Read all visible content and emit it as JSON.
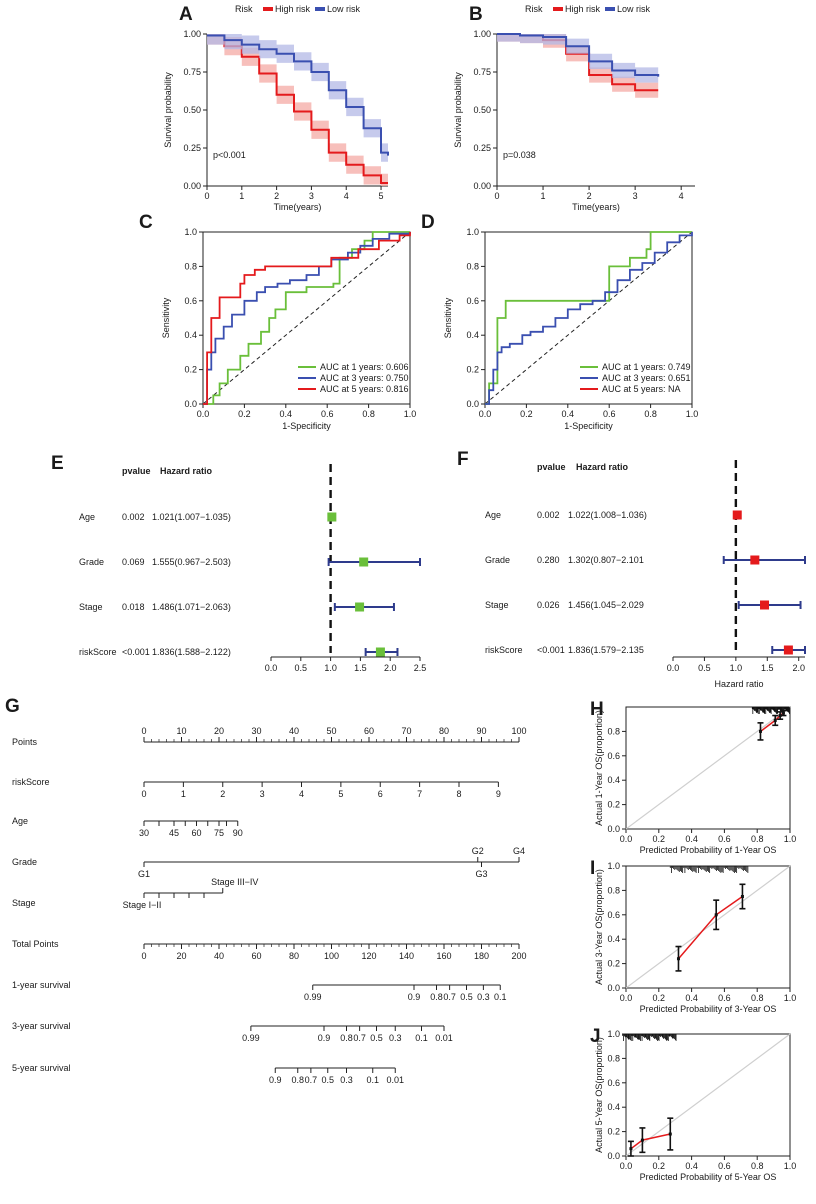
{
  "colors": {
    "high_risk": "#e41a1c",
    "low_risk": "#3a4fb0",
    "green": "#6abf3a",
    "red": "#e41a1c",
    "blue": "#3a4fb0",
    "band_high": "#f4a9a4",
    "band_low": "#b3b8e6"
  },
  "chart_data": [
    {
      "id": "A",
      "type": "line",
      "label": "A",
      "legend_title": "Risk",
      "legend": [
        "High risk",
        "Low risk"
      ],
      "xlabel": "Time(years)",
      "ylabel": "Survival probability",
      "xlim": [
        0,
        5.2
      ],
      "ylim": [
        0,
        1
      ],
      "xticks": [
        "0",
        "1",
        "2",
        "3",
        "4",
        "5"
      ],
      "yticks": [
        "0.00",
        "0.25",
        "0.50",
        "0.75",
        "1.00"
      ],
      "pvalue": "p<0.001",
      "series": [
        {
          "name": "High risk",
          "x": [
            0,
            0.5,
            1,
            1.5,
            2,
            2.5,
            3,
            3.5,
            4,
            4.5,
            5,
            5.2
          ],
          "y": [
            0.99,
            0.92,
            0.85,
            0.74,
            0.6,
            0.49,
            0.37,
            0.22,
            0.14,
            0.07,
            0.02,
            0.02
          ],
          "band": 0.06
        },
        {
          "name": "Low risk",
          "x": [
            0,
            0.5,
            1,
            1.5,
            2,
            2.5,
            3,
            3.5,
            4,
            4.5,
            5,
            5.2
          ],
          "y": [
            0.99,
            0.96,
            0.93,
            0.9,
            0.87,
            0.82,
            0.75,
            0.63,
            0.52,
            0.38,
            0.22,
            0.2
          ],
          "band": 0.06
        }
      ]
    },
    {
      "id": "B",
      "type": "line",
      "label": "B",
      "legend_title": "Risk",
      "legend": [
        "High risk",
        "Low risk"
      ],
      "xlabel": "Time(years)",
      "ylabel": "Survival probability",
      "xlim": [
        0,
        4.3
      ],
      "ylim": [
        0,
        1
      ],
      "xticks": [
        "0",
        "1",
        "2",
        "3",
        "4"
      ],
      "yticks": [
        "0.00",
        "0.25",
        "0.50",
        "0.75",
        "1.00"
      ],
      "pvalue": "p=0.038",
      "series": [
        {
          "name": "High risk",
          "x": [
            0,
            0.5,
            1,
            1.5,
            2,
            2.5,
            3,
            3.5
          ],
          "y": [
            1,
            0.99,
            0.96,
            0.87,
            0.73,
            0.67,
            0.63,
            0.63
          ],
          "band": 0.05
        },
        {
          "name": "Low risk",
          "x": [
            0,
            0.5,
            1,
            1.5,
            2,
            2.5,
            3,
            3.5
          ],
          "y": [
            1,
            0.99,
            0.98,
            0.92,
            0.82,
            0.76,
            0.73,
            0.72
          ],
          "band": 0.05
        }
      ]
    },
    {
      "id": "C",
      "type": "line",
      "label": "C",
      "xlabel": "1-Specificity",
      "ylabel": "Sensitivity",
      "xlim": [
        0,
        1
      ],
      "ylim": [
        0,
        1
      ],
      "xticks": [
        "0.0",
        "0.2",
        "0.4",
        "0.6",
        "0.8",
        "1.0"
      ],
      "yticks": [
        "0.0",
        "0.2",
        "0.4",
        "0.6",
        "0.8",
        "1.0"
      ],
      "legend": [
        "AUC at 1 years: 0.606",
        "AUC at 3 years: 0.750",
        "AUC at 5 years: 0.816"
      ],
      "series": [
        {
          "name": "AUC at 1 years: 0.606",
          "x": [
            0,
            0.05,
            0.08,
            0.12,
            0.18,
            0.22,
            0.28,
            0.32,
            0.35,
            0.4,
            0.5,
            0.6,
            0.63,
            0.66,
            0.72,
            0.78,
            0.82,
            0.9,
            1
          ],
          "y": [
            0,
            0.05,
            0.12,
            0.2,
            0.28,
            0.35,
            0.42,
            0.5,
            0.55,
            0.65,
            0.68,
            0.68,
            0.7,
            0.85,
            0.9,
            0.95,
            1,
            1,
            1
          ]
        },
        {
          "name": "AUC at 3 years: 0.750",
          "x": [
            0,
            0.02,
            0.04,
            0.06,
            0.1,
            0.14,
            0.2,
            0.26,
            0.3,
            0.36,
            0.42,
            0.5,
            0.56,
            0.62,
            0.7,
            0.76,
            0.82,
            0.9,
            1
          ],
          "y": [
            0,
            0.2,
            0.3,
            0.38,
            0.45,
            0.52,
            0.6,
            0.65,
            0.68,
            0.7,
            0.72,
            0.75,
            0.8,
            0.84,
            0.88,
            0.92,
            0.96,
            0.99,
            1
          ]
        },
        {
          "name": "AUC at 5 years: 0.816",
          "x": [
            0,
            0.02,
            0.04,
            0.08,
            0.08,
            0.14,
            0.18,
            0.2,
            0.25,
            0.3,
            0.42,
            0.5,
            0.62,
            0.75,
            0.85,
            0.95,
            1
          ],
          "y": [
            0,
            0.3,
            0.5,
            0.5,
            0.62,
            0.62,
            0.7,
            0.75,
            0.78,
            0.8,
            0.8,
            0.8,
            0.85,
            0.9,
            0.95,
            0.98,
            1
          ]
        }
      ]
    },
    {
      "id": "D",
      "type": "line",
      "label": "D",
      "xlabel": "1-Specificity",
      "ylabel": "Sensitivity",
      "xlim": [
        0,
        1
      ],
      "ylim": [
        0,
        1
      ],
      "xticks": [
        "0.0",
        "0.2",
        "0.4",
        "0.6",
        "0.8",
        "1.0"
      ],
      "yticks": [
        "0.0",
        "0.2",
        "0.4",
        "0.6",
        "0.8",
        "1.0"
      ],
      "legend": [
        "AUC at 1 years: 0.749",
        "AUC at 3 years: 0.651",
        "AUC at 5 years: NA"
      ],
      "series": [
        {
          "name": "AUC at 1 years: 0.749",
          "x": [
            0,
            0.02,
            0.02,
            0.06,
            0.06,
            0.1,
            0.1,
            0.3,
            0.4,
            0.55,
            0.6,
            0.6,
            0.7,
            0.7,
            0.78,
            0.8,
            0.8,
            1
          ],
          "y": [
            0,
            0,
            0.12,
            0.12,
            0.5,
            0.5,
            0.6,
            0.6,
            0.6,
            0.6,
            0.6,
            0.8,
            0.8,
            0.85,
            0.9,
            0.9,
            1,
            1
          ]
        },
        {
          "name": "AUC at 3 years: 0.651",
          "x": [
            0,
            0.02,
            0.04,
            0.06,
            0.08,
            0.12,
            0.18,
            0.22,
            0.28,
            0.34,
            0.4,
            0.46,
            0.52,
            0.58,
            0.64,
            0.7,
            0.76,
            0.82,
            0.88,
            0.94,
            1
          ],
          "y": [
            0,
            0.08,
            0.2,
            0.3,
            0.33,
            0.35,
            0.4,
            0.42,
            0.45,
            0.5,
            0.55,
            0.58,
            0.6,
            0.65,
            0.72,
            0.78,
            0.82,
            0.88,
            0.94,
            0.98,
            1
          ]
        }
      ]
    },
    {
      "id": "E",
      "type": "scatter",
      "label": "E",
      "pvalue_header": "pvalue",
      "hr_header": "Hazard ratio",
      "xlim": [
        0,
        2.5
      ],
      "xticks": [
        "0.0",
        "0.5",
        "1.0",
        "1.5",
        "2.0",
        "2.5"
      ],
      "rows": [
        {
          "name": "Age",
          "pvalue": "0.002",
          "hr_text": "1.021(1.007−1.035)",
          "hr": 1.021,
          "lo": 1.007,
          "hi": 1.035
        },
        {
          "name": "Grade",
          "pvalue": "0.069",
          "hr_text": "1.555(0.967−2.503)",
          "hr": 1.555,
          "lo": 0.967,
          "hi": 2.503
        },
        {
          "name": "Stage",
          "pvalue": "0.018",
          "hr_text": "1.486(1.071−2.063)",
          "hr": 1.486,
          "lo": 1.071,
          "hi": 2.063
        },
        {
          "name": "riskScore",
          "pvalue": "<0.001",
          "hr_text": "1.836(1.588−2.122)",
          "hr": 1.836,
          "lo": 1.588,
          "hi": 2.122
        }
      ]
    },
    {
      "id": "F",
      "type": "scatter",
      "label": "F",
      "pvalue_header": "pvalue",
      "hr_header": "Hazard ratio",
      "xlabel": "Hazard ratio",
      "xlim": [
        0,
        2.1
      ],
      "xticks": [
        "0.0",
        "0.5",
        "1.0",
        "1.5",
        "2.0"
      ],
      "rows": [
        {
          "name": "Age",
          "pvalue": "0.002",
          "hr_text": "1.022(1.008−1.036)",
          "hr": 1.022,
          "lo": 1.008,
          "hi": 1.036
        },
        {
          "name": "Grade",
          "pvalue": "0.280",
          "hr_text": "1.302(0.807−2.101",
          "hr": 1.302,
          "lo": 0.807,
          "hi": 2.101
        },
        {
          "name": "Stage",
          "pvalue": "0.026",
          "hr_text": "1.456(1.045−2.029",
          "hr": 1.456,
          "lo": 1.045,
          "hi": 2.029
        },
        {
          "name": "riskScore",
          "pvalue": "<0.001",
          "hr_text": "1.836(1.579−2.135",
          "hr": 1.836,
          "lo": 1.579,
          "hi": 2.135
        }
      ]
    },
    {
      "id": "G",
      "type": "table",
      "label": "G",
      "rows": [
        {
          "name": "Points",
          "ticks": [
            {
              "v": 0,
              "l": "0"
            },
            {
              "v": 10,
              "l": "10"
            },
            {
              "v": 20,
              "l": "20"
            },
            {
              "v": 30,
              "l": "30"
            },
            {
              "v": 40,
              "l": "40"
            },
            {
              "v": 50,
              "l": "50"
            },
            {
              "v": 60,
              "l": "60"
            },
            {
              "v": 70,
              "l": "70"
            },
            {
              "v": 80,
              "l": "80"
            },
            {
              "v": 90,
              "l": "90"
            },
            {
              "v": 100,
              "l": "100"
            }
          ],
          "minor": true,
          "label_pos": "above"
        },
        {
          "name": "riskScore",
          "ticks": [
            {
              "v": 0,
              "l": "0"
            },
            {
              "v": 10.5,
              "l": "1"
            },
            {
              "v": 21,
              "l": "2"
            },
            {
              "v": 31.5,
              "l": "3"
            },
            {
              "v": 42,
              "l": "4"
            },
            {
              "v": 52.5,
              "l": "5"
            },
            {
              "v": 63,
              "l": "6"
            },
            {
              "v": 73.5,
              "l": "7"
            },
            {
              "v": 84,
              "l": "8"
            },
            {
              "v": 94.5,
              "l": "9"
            }
          ],
          "label_pos": "below"
        },
        {
          "name": "Age",
          "ticks": [
            {
              "v": 0,
              "l": "30"
            },
            {
              "v": 4,
              "l": ""
            },
            {
              "v": 8,
              "l": "45"
            },
            {
              "v": 11,
              "l": ""
            },
            {
              "v": 14,
              "l": "60"
            },
            {
              "v": 17,
              "l": ""
            },
            {
              "v": 20,
              "l": "75"
            },
            {
              "v": 22,
              "l": ""
            },
            {
              "v": 25,
              "l": "90"
            }
          ],
          "range": [
            0,
            22
          ],
          "label_pos": "below"
        },
        {
          "name": "Grade",
          "ticks": [
            {
              "v": 0,
              "l": "G1"
            },
            {
              "v": 89,
              "l": "G2"
            },
            {
              "v": 90,
              "l": "G3"
            },
            {
              "v": 100,
              "l": "G4"
            }
          ],
          "alt": true
        },
        {
          "name": "Stage",
          "ticks": [
            {
              "v": 0,
              "l": "Stage I−II"
            },
            {
              "v": 4,
              "l": ""
            },
            {
              "v": 8,
              "l": ""
            },
            {
              "v": 12,
              "l": ""
            },
            {
              "v": 16,
              "l": ""
            },
            {
              "v": 21,
              "l": "Stage III−IV"
            }
          ],
          "stage": true
        },
        {
          "name": "Total Points",
          "ticks": [
            {
              "v": 0,
              "l": "0"
            },
            {
              "v": 10,
              "l": "20"
            },
            {
              "v": 20,
              "l": "40"
            },
            {
              "v": 30,
              "l": "60"
            },
            {
              "v": 40,
              "l": "80"
            },
            {
              "v": 50,
              "l": "100"
            },
            {
              "v": 60,
              "l": "120"
            },
            {
              "v": 70,
              "l": "140"
            },
            {
              "v": 80,
              "l": "160"
            },
            {
              "v": 90,
              "l": "180"
            },
            {
              "v": 100,
              "l": "200"
            }
          ],
          "minor": true,
          "label_pos": "below"
        },
        {
          "name": "1-year survival",
          "ticks": [
            {
              "v": 45,
              "l": "0.99"
            },
            {
              "v": 72,
              "l": "0.9"
            },
            {
              "v": 78,
              "l": "0.8"
            },
            {
              "v": 81.5,
              "l": "0.7"
            },
            {
              "v": 86,
              "l": "0.5"
            },
            {
              "v": 90.5,
              "l": "0.3"
            },
            {
              "v": 95,
              "l": "0.1"
            }
          ],
          "label_pos": "below"
        },
        {
          "name": "3-year survival",
          "ticks": [
            {
              "v": 28.5,
              "l": "0.99"
            },
            {
              "v": 48,
              "l": "0.9"
            },
            {
              "v": 54,
              "l": "0.8"
            },
            {
              "v": 57.5,
              "l": "0.7"
            },
            {
              "v": 62,
              "l": "0.5"
            },
            {
              "v": 67,
              "l": "0.3"
            },
            {
              "v": 74,
              "l": "0.1"
            },
            {
              "v": 80,
              "l": "0.01"
            }
          ],
          "label_pos": "below"
        },
        {
          "name": "5-year survival",
          "ticks": [
            {
              "v": 35,
              "l": "0.9"
            },
            {
              "v": 41,
              "l": "0.8"
            },
            {
              "v": 44.5,
              "l": "0.7"
            },
            {
              "v": 49,
              "l": "0.5"
            },
            {
              "v": 54,
              "l": "0.3"
            },
            {
              "v": 61,
              "l": "0.1"
            },
            {
              "v": 67,
              "l": "0.01"
            }
          ],
          "label_pos": "below"
        }
      ]
    },
    {
      "id": "H",
      "type": "line",
      "label": "H",
      "xlabel": "Predicted Probability of 1-Year OS",
      "ylabel": "Actual 1-Year OS(proportion)",
      "xlim": [
        0,
        1
      ],
      "ylim": [
        0,
        1
      ],
      "xticks": [
        "0.0",
        "0.2",
        "0.4",
        "0.6",
        "0.8",
        "1.0"
      ],
      "yticks": [
        "0.0",
        "0.2",
        "0.4",
        "0.6",
        "0.8"
      ],
      "series": [
        {
          "name": "calibration",
          "x": [
            0.82,
            0.91,
            0.94,
            0.96
          ],
          "y": [
            0.8,
            0.89,
            0.93,
            0.95
          ],
          "err": [
            0.07,
            0.04,
            0.03,
            0.02
          ]
        }
      ]
    },
    {
      "id": "I",
      "type": "line",
      "label": "I",
      "xlabel": "Predicted Probability of 3-Year OS",
      "ylabel": "Actual 3-Year OS(proportion)",
      "xlim": [
        0,
        1
      ],
      "ylim": [
        0,
        1
      ],
      "xticks": [
        "0.0",
        "0.2",
        "0.4",
        "0.6",
        "0.8",
        "1.0"
      ],
      "yticks": [
        "0.0",
        "0.2",
        "0.4",
        "0.6",
        "0.8",
        "1.0"
      ],
      "series": [
        {
          "name": "calibration",
          "x": [
            0.32,
            0.55,
            0.71
          ],
          "y": [
            0.24,
            0.6,
            0.75
          ],
          "err": [
            0.1,
            0.12,
            0.1
          ]
        }
      ]
    },
    {
      "id": "J",
      "type": "line",
      "label": "J",
      "xlabel": "Predicted Probability of 5-Year OS",
      "ylabel": "Actual 5-Year OS(proportion)",
      "xlim": [
        0,
        1
      ],
      "ylim": [
        0,
        1
      ],
      "xticks": [
        "0.0",
        "0.2",
        "0.4",
        "0.6",
        "0.8",
        "1.0"
      ],
      "yticks": [
        "0.0",
        "0.2",
        "0.4",
        "0.6",
        "0.8",
        "1.0"
      ],
      "series": [
        {
          "name": "calibration",
          "x": [
            0.03,
            0.1,
            0.27
          ],
          "y": [
            0.06,
            0.13,
            0.18
          ],
          "err": [
            0.06,
            0.1,
            0.13
          ]
        }
      ]
    }
  ]
}
